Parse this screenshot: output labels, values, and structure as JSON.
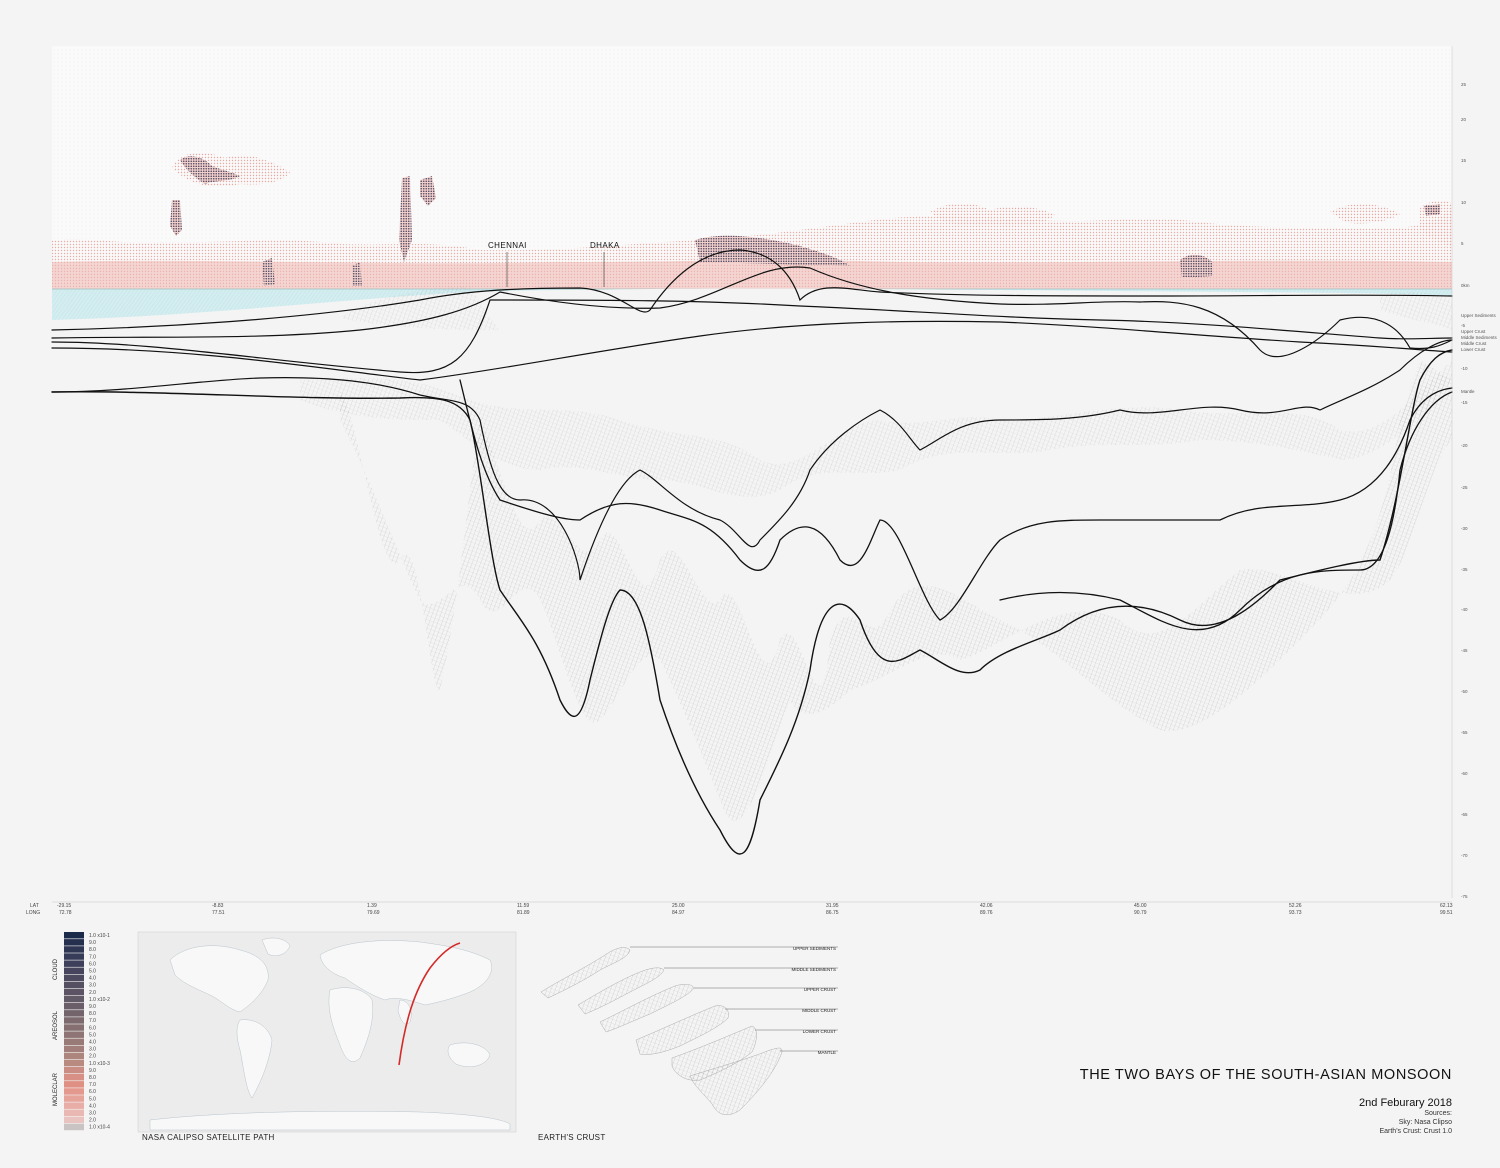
{
  "title": "THE TWO BAYS OF THE SOUTH-ASIAN MONSOON",
  "date": "2nd Feburary 2018",
  "sources_label": "Sources:",
  "sources": [
    "Sky: Nasa Clipso",
    "Earth's Crust: Crust 1.0"
  ],
  "cities": [
    {
      "name": "CHENNAI"
    },
    {
      "name": "DHAKA"
    }
  ],
  "right_scale": {
    "ticks": [
      "25",
      "20",
      "15",
      "10",
      "5",
      "0km",
      "-5",
      "-10",
      "-15",
      "-20",
      "-25",
      "-30",
      "-35",
      "-40",
      "-45",
      "-50",
      "-55",
      "-60",
      "-65",
      "-70",
      "-75"
    ],
    "layer_labels": [
      "Upper Sediments",
      "Upper Crust",
      "Middle Sediments",
      "Middle Crust",
      "Lower Crust",
      "Mantle"
    ]
  },
  "coordinates": {
    "lat_label": "LAT",
    "long_label": "LONG",
    "lat": [
      "-29.15",
      "-8.83",
      "1.39",
      "11.59",
      "25.00",
      "31.95",
      "42.06",
      "45.00",
      "52.26",
      "62.13"
    ],
    "long": [
      "72.78",
      "77.51",
      "79.69",
      "81.89",
      "84.97",
      "86.75",
      "89.76",
      "90.79",
      "93.73",
      "99.51"
    ]
  },
  "legend": {
    "groups": [
      "CLOUD",
      "AREOSOL",
      "MOLECLAR"
    ],
    "labels": [
      "1.0 x10-1",
      "9.0",
      "8.0",
      "7.0",
      "6.0",
      "5.0",
      "4.0",
      "3.0",
      "2.0",
      "1.0 x10-2",
      "9.0",
      "8.0",
      "7.0",
      "6.0",
      "5.0",
      "4.0",
      "3.0",
      "2.0",
      "1.0 x10-3",
      "9.0",
      "8.0",
      "7.0",
      "6.0",
      "5.0",
      "4.0",
      "3.0",
      "2.0",
      "1.0 x10-4"
    ],
    "colors": [
      "#1c2a4a",
      "#25304f",
      "#2e3654",
      "#363b58",
      "#3e405b",
      "#46455d",
      "#4d4a60",
      "#554f62",
      "#5c5465",
      "#635a67",
      "#6a5f69",
      "#73646c",
      "#7c6a6e",
      "#856f71",
      "#8e7474",
      "#987a77",
      "#a27f7a",
      "#ac857d",
      "#b88a80",
      "#c98d84",
      "#d88f85",
      "#e08f83",
      "#e4998e",
      "#e6a39a",
      "#e8ada6",
      "#e9b8b2",
      "#e9c3bf",
      "#c9c3c4"
    ]
  },
  "crust_layers": [
    "UPPER SEDIMENTS",
    "MIDDLE SEDIMENTS",
    "UPPER CRUST",
    "MIDDLE CRUST",
    "LOWER CRUST",
    "MANTLE"
  ],
  "captions": {
    "map": "NASA CALIPSO SATELLITE PATH",
    "crust": "EARTH'S CRUST"
  },
  "colors": {
    "sky_dots": "#e8a9a3",
    "cloud_dark": "#4e4760",
    "water": "#d3eef1",
    "layer_line": "#111111",
    "path": "#d42a2a"
  }
}
